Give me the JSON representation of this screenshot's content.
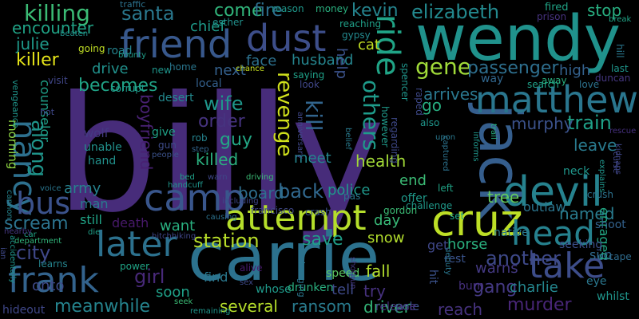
{
  "word_cloud": {
    "background": "#000000",
    "words": [
      {
        "text": "billy",
        "color": "#472c7a"
      },
      {
        "text": "carrie",
        "color": "#2c728e"
      },
      {
        "text": "wendy",
        "color": "#20928c"
      },
      {
        "text": "jack",
        "color": "#355e8d"
      },
      {
        "text": "dust",
        "color": "#3d4e8a"
      },
      {
        "text": "friend",
        "color": "#38588c"
      },
      {
        "text": "devil",
        "color": "#26828e"
      },
      {
        "text": "cruz",
        "color": "#bddf26"
      },
      {
        "text": "camp",
        "color": "#39568c"
      },
      {
        "text": "attempt",
        "color": "#b5de2b"
      },
      {
        "text": "head",
        "color": "#26818e"
      },
      {
        "text": "matthew",
        "color": "#2a768e"
      },
      {
        "text": "later",
        "color": "#2c718e"
      },
      {
        "text": "take",
        "color": "#3d4d8a"
      },
      {
        "text": "frank",
        "color": "#33638d"
      },
      {
        "text": "nancy",
        "color": "#2d708e"
      },
      {
        "text": "bus",
        "color": "#3b528b"
      },
      {
        "text": "ride",
        "color": "#20a486"
      },
      {
        "text": "elizabeth",
        "color": "#23898e"
      },
      {
        "text": "killing",
        "color": "#3bbb75"
      },
      {
        "text": "santa",
        "color": "#2a788e"
      },
      {
        "text": "gene",
        "color": "#a0da39"
      },
      {
        "text": "passenger",
        "color": "#2e6f8e"
      },
      {
        "text": "train",
        "color": "#1fa188"
      },
      {
        "text": "revenge",
        "color": "#d0e11c"
      },
      {
        "text": "kill",
        "color": "#32658e"
      },
      {
        "text": "others",
        "color": "#1e9b8a"
      },
      {
        "text": "along",
        "color": "#1f958b"
      },
      {
        "text": "boyfriend",
        "color": "#482173"
      },
      {
        "text": "station",
        "color": "#b8de29"
      },
      {
        "text": "back",
        "color": "#31688e"
      },
      {
        "text": "save",
        "color": "#1f9e89"
      },
      {
        "text": "another",
        "color": "#3e4989"
      },
      {
        "text": "meanwhile",
        "color": "#25848e"
      },
      {
        "text": "city",
        "color": "#3f4889"
      },
      {
        "text": "gang",
        "color": "#443983"
      },
      {
        "text": "murder",
        "color": "#482677"
      },
      {
        "text": "wife",
        "color": "#1f968b"
      },
      {
        "text": "order",
        "color": "#46337f"
      },
      {
        "text": "guy",
        "color": "#22a785"
      },
      {
        "text": "becomes",
        "color": "#20a386"
      },
      {
        "text": "killer",
        "color": "#e5e419"
      },
      {
        "text": "kevin",
        "color": "#25848e"
      },
      {
        "text": "come",
        "color": "#31b57b"
      },
      {
        "text": "fire",
        "color": "#2d708e"
      },
      {
        "text": "stop",
        "color": "#28ae80"
      },
      {
        "text": "julie",
        "color": "#1f9a8a"
      },
      {
        "text": "encounter",
        "color": "#20a386"
      },
      {
        "text": "chief",
        "color": "#1e9b8a"
      },
      {
        "text": "husband",
        "color": "#25858e"
      },
      {
        "text": "cat",
        "color": "#c2df23"
      },
      {
        "text": "drive",
        "color": "#21918c"
      },
      {
        "text": "next",
        "color": "#34608d"
      },
      {
        "text": "face",
        "color": "#2d718e"
      },
      {
        "text": "killed",
        "color": "#2ab07f"
      },
      {
        "text": "health",
        "color": "#a2da37"
      },
      {
        "text": "meet",
        "color": "#24868e"
      },
      {
        "text": "police",
        "color": "#1f988b"
      },
      {
        "text": "board",
        "color": "#2e6e8e"
      },
      {
        "text": "murphy",
        "color": "#3b528b"
      },
      {
        "text": "leave",
        "color": "#297a8e"
      },
      {
        "text": "high",
        "color": "#34618d"
      },
      {
        "text": "help",
        "color": "#3b528b"
      },
      {
        "text": "arrives",
        "color": "#2a778e"
      },
      {
        "text": "go",
        "color": "#28ae80"
      },
      {
        "text": "end",
        "color": "#3bbb75"
      },
      {
        "text": "tree",
        "color": "#65cb5e"
      },
      {
        "text": "named",
        "color": "#297b8e"
      },
      {
        "text": "day",
        "color": "#38b977"
      },
      {
        "text": "snow",
        "color": "#b2dd2d"
      },
      {
        "text": "fall",
        "color": "#b2dd2d"
      },
      {
        "text": "try",
        "color": "#46317e"
      },
      {
        "text": "warns",
        "color": "#443983"
      },
      {
        "text": "sun",
        "color": "#30698e"
      },
      {
        "text": "enraged",
        "color": "#22a884"
      },
      {
        "text": "driver",
        "color": "#34b679"
      },
      {
        "text": "ransom",
        "color": "#297b8e"
      },
      {
        "text": "several",
        "color": "#b5de2b"
      },
      {
        "text": "reach",
        "color": "#46327e"
      },
      {
        "text": "charlie",
        "color": "#24878e"
      },
      {
        "text": "girl",
        "color": "#482979"
      },
      {
        "text": "tell",
        "color": "#3e4a89"
      },
      {
        "text": "want",
        "color": "#29af7f"
      },
      {
        "text": "death",
        "color": "#48196b"
      },
      {
        "text": "scream",
        "color": "#2c738e"
      },
      {
        "text": "army",
        "color": "#26828e"
      },
      {
        "text": "onto",
        "color": "#3e4a89"
      },
      {
        "text": "man",
        "color": "#297a8e"
      },
      {
        "text": "still",
        "color": "#20a386"
      },
      {
        "text": "soon",
        "color": "#1fa088"
      },
      {
        "text": "find",
        "color": "#2a788e"
      },
      {
        "text": "horse",
        "color": "#2ab07f"
      },
      {
        "text": "outlaw",
        "color": "#2b758e"
      },
      {
        "text": "get",
        "color": "#3f4788"
      },
      {
        "text": "counselor",
        "color": "#1f9f88"
      },
      {
        "text": "morning",
        "color": "#90d743"
      },
      {
        "text": "desert",
        "color": "#23898e"
      },
      {
        "text": "give",
        "color": "#1fa287"
      },
      {
        "text": "wolf",
        "color": "#443a83"
      },
      {
        "text": "unable",
        "color": "#21918c"
      },
      {
        "text": "hand",
        "color": "#21918c"
      },
      {
        "text": "gun",
        "color": "#3e4c8a"
      },
      {
        "text": "way",
        "color": "#31678e"
      },
      {
        "text": "offer",
        "color": "#1f998a"
      },
      {
        "text": "set",
        "color": "#20a386"
      },
      {
        "text": "neck",
        "color": "#1f968b"
      },
      {
        "text": "crush",
        "color": "#2c728e"
      },
      {
        "text": "shoot",
        "color": "#33628d"
      },
      {
        "text": "native",
        "color": "#2a788e"
      },
      {
        "text": "rest",
        "color": "#3a548c"
      },
      {
        "text": "hit",
        "color": "#3b528b"
      },
      {
        "text": "burn",
        "color": "#46307e"
      },
      {
        "text": "escape",
        "color": "#2f6c8e"
      },
      {
        "text": "seeking",
        "color": "#3c4f8a"
      },
      {
        "text": "eye",
        "color": "#2a778e"
      },
      {
        "text": "whilst",
        "color": "#1f958b"
      },
      {
        "text": "pole",
        "color": "#3b528b"
      },
      {
        "text": "release",
        "color": "#46307e"
      },
      {
        "text": "speed",
        "color": "#5cc863"
      },
      {
        "text": "whose",
        "color": "#1f9a8a"
      },
      {
        "text": "drunken",
        "color": "#2ab07f"
      },
      {
        "text": "alive",
        "color": "#481b6d"
      },
      {
        "text": "local",
        "color": "#34608d"
      },
      {
        "text": "look",
        "color": "#3f4788"
      },
      {
        "text": "saying",
        "color": "#1fa188"
      },
      {
        "text": "road",
        "color": "#25838e"
      },
      {
        "text": "going",
        "color": "#c0df25"
      },
      {
        "text": "bounty",
        "color": "#1f9e89"
      },
      {
        "text": "visit",
        "color": "#404688"
      },
      {
        "text": "corrupt",
        "color": "#1f9a8a"
      },
      {
        "text": "new",
        "color": "#1f958b"
      },
      {
        "text": "home",
        "color": "#2a768e"
      },
      {
        "text": "reason",
        "color": "#1f988b"
      },
      {
        "text": "money",
        "color": "#2ab07f"
      },
      {
        "text": "reaching",
        "color": "#1fa088"
      },
      {
        "text": "gypsy",
        "color": "#23898e"
      },
      {
        "text": "fired",
        "color": "#20a486"
      },
      {
        "text": "prison",
        "color": "#46337f"
      },
      {
        "text": "esther",
        "color": "#21918c"
      },
      {
        "text": "traffic",
        "color": "#2c728e"
      },
      {
        "text": "beaten",
        "color": "#21918c"
      },
      {
        "text": "rob",
        "color": "#25848e"
      },
      {
        "text": "step",
        "color": "#32658e"
      },
      {
        "text": "people",
        "color": "#3b528b"
      },
      {
        "text": "also",
        "color": "#1f968b"
      },
      {
        "text": "upon",
        "color": "#2a788e"
      },
      {
        "text": "informs",
        "color": "#1f968b"
      },
      {
        "text": "trail",
        "color": "#28ae80"
      },
      {
        "text": "however",
        "color": "#1f9a8a"
      },
      {
        "text": "regarding",
        "color": "#3e4989"
      },
      {
        "text": "anniversary",
        "color": "#3f4788"
      },
      {
        "text": "raped",
        "color": "#3e4989"
      },
      {
        "text": "spencer",
        "color": "#1f958b"
      },
      {
        "text": "belief",
        "color": "#297b8e"
      },
      {
        "text": "chance",
        "color": "#c8e020"
      },
      {
        "text": "search",
        "color": "#1fa088"
      },
      {
        "text": "away",
        "color": "#29af7f"
      },
      {
        "text": "love",
        "color": "#2c728e"
      },
      {
        "text": "duncan",
        "color": "#453781"
      },
      {
        "text": "last",
        "color": "#1f968b"
      },
      {
        "text": "hill",
        "color": "#2a778e"
      },
      {
        "text": "break",
        "color": "#20a486"
      },
      {
        "text": "hot",
        "color": "#3f4788"
      },
      {
        "text": "vengeance",
        "color": "#1f958b"
      },
      {
        "text": "cannon",
        "color": "#25848e"
      },
      {
        "text": "voice",
        "color": "#2a768e"
      },
      {
        "text": "handcuff",
        "color": "#1f958b"
      },
      {
        "text": "bed",
        "color": "#1fa088"
      },
      {
        "text": "warn",
        "color": "#3f4788"
      },
      {
        "text": "driving",
        "color": "#3bbb75"
      },
      {
        "text": "francisco",
        "color": "#3f4788"
      },
      {
        "text": "challenge",
        "color": "#1f998a"
      },
      {
        "text": "crash",
        "color": "#3b528b"
      },
      {
        "text": "pas",
        "color": "#2a768e"
      },
      {
        "text": "gordon",
        "color": "#3bbb75"
      },
      {
        "text": "causing",
        "color": "#2c728e"
      },
      {
        "text": "including",
        "color": "#3f4788"
      },
      {
        "text": "die",
        "color": "#1fa088"
      },
      {
        "text": "car",
        "color": "#20a486"
      },
      {
        "text": "nearby",
        "color": "#453781"
      },
      {
        "text": "department",
        "color": "#31b57b"
      },
      {
        "text": "hitchhiking",
        "color": "#404688"
      },
      {
        "text": "accidentally",
        "color": "#1f958b"
      },
      {
        "text": "ian",
        "color": "#3e4989"
      },
      {
        "text": "learns",
        "color": "#25848e"
      },
      {
        "text": "power",
        "color": "#20a486"
      },
      {
        "text": "sex",
        "color": "#3e4989"
      },
      {
        "text": "hideout",
        "color": "#3f4788"
      },
      {
        "text": "remaining",
        "color": "#1f958b"
      },
      {
        "text": "seek",
        "color": "#3bbb75"
      },
      {
        "text": "hanging",
        "color": "#2a768e"
      },
      {
        "text": "shotgun",
        "color": "#453781"
      },
      {
        "text": "kidnaps",
        "color": "#404688"
      },
      {
        "text": "explains",
        "color": "#1f958b"
      },
      {
        "text": "curse",
        "color": "#3f4788"
      },
      {
        "text": "rescue",
        "color": "#46307e"
      },
      {
        "text": "left",
        "color": "#20a486"
      },
      {
        "text": "captured",
        "color": "#2c728e"
      },
      {
        "text": "deputy",
        "color": "#2a768e"
      }
    ]
  }
}
